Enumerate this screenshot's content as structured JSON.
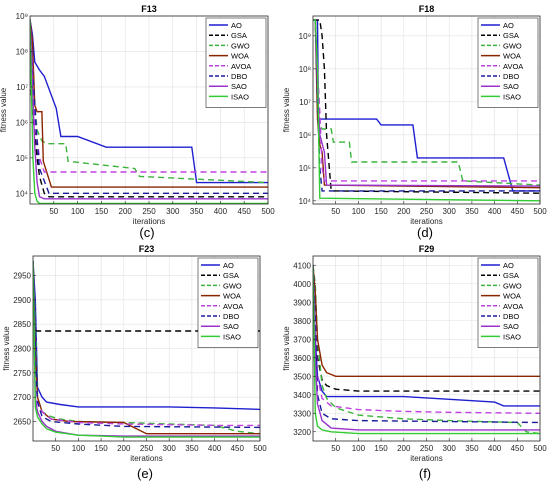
{
  "series_names": [
    "AO",
    "GSA",
    "GWO",
    "WOA",
    "AVOA",
    "DBO",
    "SAO",
    "ISAO"
  ],
  "series_styles": [
    {
      "color": "#1f1fd0",
      "dash": ""
    },
    {
      "color": "#000000",
      "dash": "6,4"
    },
    {
      "color": "#3cb33c",
      "dash": "6,4"
    },
    {
      "color": "#8b2500",
      "dash": ""
    },
    {
      "color": "#c040e0",
      "dash": "6,4"
    },
    {
      "color": "#1a1a9a",
      "dash": "6,4"
    },
    {
      "color": "#9933cc",
      "dash": ""
    },
    {
      "color": "#33cc33",
      "dash": ""
    }
  ],
  "chart_data": [
    {
      "type": "line",
      "title": "F13",
      "caption": "(c)",
      "xlabel": "iterations",
      "ylabel": "fitness value",
      "xlim": [
        0,
        500
      ],
      "ylim": [
        5000,
        1000000000
      ],
      "yscale": "log",
      "xticks": [
        50,
        100,
        150,
        200,
        250,
        300,
        350,
        400,
        450,
        500
      ],
      "yticks": [
        10000,
        100000,
        1000000,
        10000000,
        100000000,
        1000000000
      ],
      "yticklabels": [
        "10⁴",
        "10⁵",
        "10⁶",
        "10⁷",
        "10⁸",
        "10⁹"
      ],
      "grid": true,
      "legend": "top-right",
      "series": [
        {
          "name": "AO",
          "x": [
            0,
            5,
            10,
            20,
            30,
            55,
            65,
            100,
            160,
            200,
            340,
            350,
            500
          ],
          "y": [
            800000000,
            300000000,
            50000000,
            30000000,
            20000000,
            2500000,
            400000,
            400000,
            200000,
            200000,
            200000,
            20000,
            20000
          ]
        },
        {
          "name": "GSA",
          "x": [
            0,
            3,
            6,
            10,
            15,
            20,
            30,
            40,
            500
          ],
          "y": [
            800000000,
            5000000,
            1500000,
            500000,
            100000,
            30000,
            10000,
            8000,
            8000
          ]
        },
        {
          "name": "GWO",
          "x": [
            0,
            5,
            10,
            15,
            25,
            35,
            75,
            80,
            220,
            230,
            500
          ],
          "y": [
            800000000,
            100000000,
            3000000,
            600000,
            300000,
            250000,
            250000,
            80000,
            50000,
            30000,
            20000
          ]
        },
        {
          "name": "WOA",
          "x": [
            0,
            5,
            10,
            15,
            25,
            28,
            38,
            45,
            70,
            500
          ],
          "y": [
            800000000,
            200000000,
            3000000,
            2000000,
            2000000,
            80000,
            30000,
            15000,
            15000,
            15000
          ]
        },
        {
          "name": "AVOA",
          "x": [
            0,
            5,
            10,
            20,
            30,
            500
          ],
          "y": [
            800000000,
            50000000,
            1000000,
            100000,
            40000,
            40000
          ]
        },
        {
          "name": "DBO",
          "x": [
            0,
            5,
            10,
            15,
            20,
            40,
            500
          ],
          "y": [
            800000000,
            30000000,
            3000000,
            300000,
            50000,
            10000,
            10000
          ]
        },
        {
          "name": "SAO",
          "x": [
            0,
            3,
            6,
            10,
            15,
            20,
            30,
            500
          ],
          "y": [
            800000000,
            100000000,
            5000000,
            200000,
            20000,
            8000,
            7000,
            7000
          ]
        },
        {
          "name": "ISAO",
          "x": [
            0,
            3,
            6,
            10,
            15,
            20,
            500
          ],
          "y": [
            800000000,
            10000000,
            100000,
            10000,
            6000,
            5200,
            5200
          ]
        }
      ]
    },
    {
      "type": "line",
      "title": "F18",
      "caption": "(d)",
      "xlabel": "iterations",
      "ylabel": "fitness value",
      "xlim": [
        0,
        500
      ],
      "ylim": [
        8000,
        4000000000
      ],
      "yscale": "log",
      "xticks": [
        50,
        100,
        150,
        200,
        250,
        300,
        350,
        400,
        450,
        500
      ],
      "yticks": [
        10000,
        100000,
        1000000,
        10000000,
        100000000,
        1000000000
      ],
      "yticklabels": [
        "10⁴",
        "10⁵",
        "10⁶",
        "10⁷",
        "10⁸",
        "10⁹"
      ],
      "grid": true,
      "legend": "top-right",
      "series": [
        {
          "name": "AO",
          "x": [
            0,
            4,
            10,
            12,
            100,
            140,
            150,
            220,
            230,
            420,
            440,
            500
          ],
          "y": [
            3000000000,
            3000000000,
            3000000000,
            3000000,
            3000000,
            3000000,
            2000000,
            2000000,
            200000,
            200000,
            20000,
            20000
          ]
        },
        {
          "name": "GSA",
          "x": [
            0,
            15,
            20,
            25,
            30,
            40,
            500
          ],
          "y": [
            3000000000,
            3000000000,
            1000000000,
            100000000,
            1000000,
            20000,
            17000
          ]
        },
        {
          "name": "GWO",
          "x": [
            0,
            5,
            10,
            15,
            20,
            40,
            45,
            80,
            85,
            320,
            330,
            500
          ],
          "y": [
            3000000000,
            3000000000,
            50000000,
            2000000,
            1500000,
            1500000,
            600000,
            600000,
            150000,
            150000,
            40000,
            30000
          ]
        },
        {
          "name": "WOA",
          "x": [
            0,
            5,
            10,
            15,
            20,
            25,
            500
          ],
          "y": [
            3000000000,
            3000000000,
            3000000,
            500000,
            300000,
            30000,
            25000
          ]
        },
        {
          "name": "AVOA",
          "x": [
            0,
            5,
            10,
            15,
            20,
            25,
            500
          ],
          "y": [
            3000000000,
            3000000000,
            100000000,
            5000000,
            100000,
            40000,
            40000
          ]
        },
        {
          "name": "DBO",
          "x": [
            0,
            5,
            10,
            15,
            20,
            500
          ],
          "y": [
            3000000000,
            3000000000,
            10000000,
            100000,
            20000,
            20000
          ]
        },
        {
          "name": "SAO",
          "x": [
            0,
            5,
            10,
            15,
            25,
            30,
            500
          ],
          "y": [
            3000000000,
            3000000000,
            30000000,
            1000000,
            300000,
            30000,
            28000
          ]
        },
        {
          "name": "ISAO",
          "x": [
            0,
            5,
            10,
            15,
            500
          ],
          "y": [
            3000000000,
            3000000000,
            100000000,
            12000,
            10000
          ]
        }
      ]
    },
    {
      "type": "line",
      "title": "F23",
      "caption": "(e)",
      "xlabel": "iterations",
      "ylabel": "fitness value",
      "xlim": [
        0,
        500
      ],
      "ylim": [
        2610,
        2990
      ],
      "yscale": "linear",
      "xticks": [
        50,
        100,
        150,
        200,
        250,
        300,
        350,
        400,
        450,
        500
      ],
      "yticks": [
        2650,
        2700,
        2750,
        2800,
        2850,
        2900,
        2950
      ],
      "yticklabels": [
        "2650",
        "2700",
        "2750",
        "2800",
        "2850",
        "2900",
        "2950"
      ],
      "grid": true,
      "legend": "top-right",
      "series": [
        {
          "name": "AO",
          "x": [
            0,
            5,
            10,
            20,
            30,
            60,
            100,
            200,
            300,
            400,
            500
          ],
          "y": [
            2980,
            2900,
            2720,
            2700,
            2690,
            2685,
            2680,
            2680,
            2680,
            2678,
            2675
          ]
        },
        {
          "name": "GSA",
          "x": [
            0,
            5,
            10,
            500
          ],
          "y": [
            2980,
            2836,
            2836,
            2836
          ]
        },
        {
          "name": "GWO",
          "x": [
            0,
            5,
            10,
            20,
            40,
            60,
            100,
            200,
            300,
            400,
            450,
            500
          ],
          "y": [
            2980,
            2850,
            2700,
            2670,
            2660,
            2655,
            2650,
            2648,
            2645,
            2642,
            2630,
            2625
          ]
        },
        {
          "name": "WOA",
          "x": [
            0,
            5,
            10,
            20,
            40,
            80,
            200,
            250,
            500
          ],
          "y": [
            2980,
            2800,
            2700,
            2670,
            2655,
            2650,
            2648,
            2625,
            2625
          ]
        },
        {
          "name": "AVOA",
          "x": [
            0,
            5,
            10,
            20,
            40,
            100,
            200,
            400,
            500
          ],
          "y": [
            2980,
            2750,
            2690,
            2670,
            2655,
            2648,
            2645,
            2642,
            2642
          ]
        },
        {
          "name": "DBO",
          "x": [
            0,
            5,
            10,
            20,
            40,
            100,
            200,
            500
          ],
          "y": [
            2980,
            2800,
            2690,
            2660,
            2650,
            2645,
            2640,
            2638
          ]
        },
        {
          "name": "SAO",
          "x": [
            0,
            5,
            10,
            20,
            30,
            50,
            80,
            100,
            200,
            500
          ],
          "y": [
            2980,
            2700,
            2670,
            2650,
            2640,
            2630,
            2625,
            2622,
            2620,
            2620
          ]
        },
        {
          "name": "ISAO",
          "x": [
            0,
            5,
            10,
            20,
            30,
            50,
            100,
            150,
            200,
            500
          ],
          "y": [
            2980,
            2680,
            2660,
            2645,
            2635,
            2628,
            2622,
            2620,
            2618,
            2618
          ]
        }
      ]
    },
    {
      "type": "line",
      "title": "F29",
      "caption": "(f)",
      "xlabel": "iterations",
      "ylabel": "fitness value",
      "xlim": [
        0,
        500
      ],
      "ylim": [
        3150,
        4150
      ],
      "yscale": "linear",
      "xticks": [
        50,
        100,
        150,
        200,
        250,
        300,
        350,
        400,
        450,
        500
      ],
      "yticks": [
        3200,
        3300,
        3400,
        3500,
        3600,
        3700,
        3800,
        3900,
        4000,
        4100
      ],
      "yticklabels": [
        "3200",
        "3300",
        "3400",
        "3500",
        "3600",
        "3700",
        "3800",
        "3900",
        "4000",
        "4100"
      ],
      "grid": true,
      "legend": "top-right",
      "series": [
        {
          "name": "AO",
          "x": [
            0,
            5,
            10,
            20,
            30,
            100,
            200,
            400,
            420,
            500
          ],
          "y": [
            4100,
            3700,
            3500,
            3420,
            3390,
            3390,
            3390,
            3360,
            3340,
            3340
          ]
        },
        {
          "name": "GSA",
          "x": [
            0,
            5,
            10,
            20,
            30,
            50,
            100,
            500
          ],
          "y": [
            4100,
            3900,
            3600,
            3480,
            3450,
            3430,
            3420,
            3420
          ]
        },
        {
          "name": "GWO",
          "x": [
            0,
            5,
            10,
            20,
            30,
            50,
            100,
            200,
            300,
            450,
            470,
            500
          ],
          "y": [
            4100,
            4000,
            3700,
            3450,
            3380,
            3330,
            3290,
            3270,
            3260,
            3250,
            3200,
            3190
          ]
        },
        {
          "name": "WOA",
          "x": [
            0,
            5,
            10,
            20,
            30,
            50,
            500
          ],
          "y": [
            4100,
            3950,
            3700,
            3560,
            3520,
            3500,
            3500
          ]
        },
        {
          "name": "AVOA",
          "x": [
            0,
            5,
            10,
            20,
            40,
            100,
            200,
            300,
            500
          ],
          "y": [
            4100,
            3800,
            3500,
            3380,
            3340,
            3320,
            3310,
            3305,
            3300
          ]
        },
        {
          "name": "DBO",
          "x": [
            0,
            5,
            10,
            20,
            40,
            100,
            500
          ],
          "y": [
            4100,
            3800,
            3400,
            3300,
            3270,
            3260,
            3250
          ]
        },
        {
          "name": "SAO",
          "x": [
            0,
            5,
            10,
            20,
            40,
            100,
            500
          ],
          "y": [
            4100,
            3600,
            3350,
            3260,
            3220,
            3210,
            3210
          ]
        },
        {
          "name": "ISAO",
          "x": [
            0,
            5,
            10,
            20,
            40,
            100,
            500
          ],
          "y": [
            4100,
            3300,
            3230,
            3210,
            3200,
            3190,
            3190
          ]
        }
      ]
    }
  ]
}
